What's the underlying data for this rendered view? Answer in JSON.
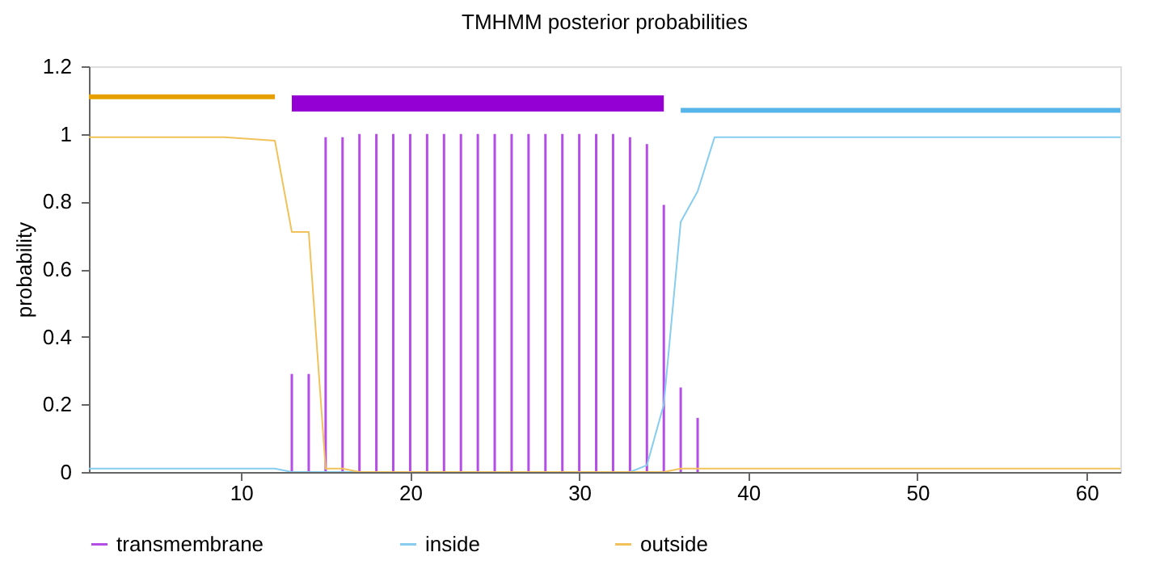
{
  "chart_data": {
    "type": "line",
    "title": "TMHMM posterior probabilities",
    "ylabel": "probability",
    "xlim": [
      1,
      62
    ],
    "xticks": [
      10,
      20,
      30,
      40,
      50,
      60
    ],
    "ylim": [
      0,
      1.2
    ],
    "yticks": [
      0,
      0.2,
      0.4,
      0.6,
      0.8,
      1,
      1.2
    ],
    "grid": false,
    "legend": "bottom",
    "series": [
      {
        "name": "transmembrane",
        "type": "bar",
        "color": "#b44ee6",
        "x": [
          13,
          14,
          15,
          16,
          17,
          18,
          19,
          20,
          21,
          22,
          23,
          24,
          25,
          26,
          27,
          28,
          29,
          30,
          31,
          32,
          33,
          34,
          35,
          36,
          37
        ],
        "values": [
          0.29,
          0.29,
          0.99,
          0.99,
          1,
          1,
          1,
          1,
          1,
          1,
          1,
          1,
          1,
          1,
          1,
          1,
          1,
          1,
          1,
          1,
          0.99,
          0.97,
          0.79,
          0.25,
          0.16
        ]
      },
      {
        "name": "inside",
        "color": "#87cdf0",
        "x": [
          1,
          12,
          13,
          33,
          34,
          35,
          36,
          37,
          38,
          62
        ],
        "values": [
          0.01,
          0.01,
          0,
          0,
          0.02,
          0.2,
          0.74,
          0.83,
          0.99,
          0.99
        ]
      },
      {
        "name": "outside",
        "color": "#f2c25a",
        "x": [
          1,
          9,
          12,
          13,
          14,
          15,
          16,
          17,
          35,
          36,
          62
        ],
        "values": [
          0.99,
          0.99,
          0.98,
          0.71,
          0.71,
          0.01,
          0.01,
          0,
          0,
          0.01,
          0.01
        ]
      },
      {
        "color": "#e69f00",
        "x": [
          1,
          12
        ],
        "values": [
          1.11,
          1.11
        ]
      },
      {
        "color": "#9400d3",
        "x": [
          13,
          35
        ],
        "values": [
          1.09,
          1.09
        ]
      },
      {
        "color": "#56b4e9",
        "x": [
          36,
          62
        ],
        "values": [
          1.07,
          1.07
        ]
      }
    ]
  }
}
